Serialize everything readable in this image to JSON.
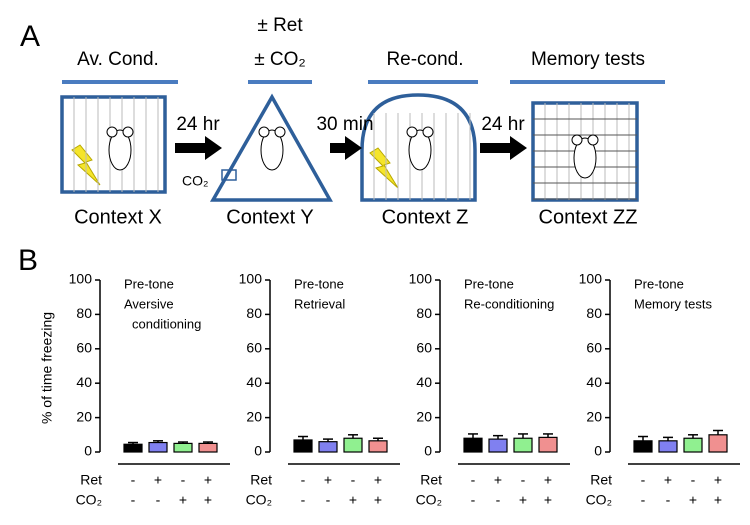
{
  "panel_a": {
    "label": "A",
    "stages": [
      {
        "header": [
          "Av. Cond."
        ],
        "context": "Context X"
      },
      {
        "header": [
          "± Ret",
          "± CO₂"
        ],
        "context": "Context Y"
      },
      {
        "header": [
          "Re-cond."
        ],
        "context": "Context Z"
      },
      {
        "header": [
          "Memory tests"
        ],
        "context": "Context ZZ"
      }
    ],
    "intervals": [
      "24 hr",
      "30 min",
      "24 hr"
    ],
    "co2_label": "CO₂"
  },
  "panel_b": {
    "label": "B"
  },
  "chart_data": [
    {
      "type": "bar",
      "title": [
        "Pre-tone",
        "Aversive",
        "conditioning"
      ],
      "ylabel": "% of time freezing",
      "values": [
        4.5,
        5.5,
        5,
        5
      ],
      "errors": [
        1,
        1,
        0.8,
        0.8
      ],
      "colors": [
        "#000000",
        "#8080f0",
        "#90f090",
        "#f09090"
      ],
      "ylim": [
        0,
        100
      ],
      "yticks": [
        0,
        20,
        40,
        60,
        80,
        100
      ],
      "rows": [
        {
          "label": "Ret",
          "marks": [
            "-",
            "+",
            "-",
            "+"
          ]
        },
        {
          "label": "CO₂",
          "marks": [
            "-",
            "-",
            "+",
            "+"
          ]
        }
      ]
    },
    {
      "type": "bar",
      "title": [
        "Pre-tone",
        "Retrieval"
      ],
      "values": [
        7,
        6,
        8,
        6.5
      ],
      "errors": [
        2,
        1.5,
        2,
        1.5
      ],
      "colors": [
        "#000000",
        "#8080f0",
        "#90f090",
        "#f09090"
      ],
      "ylim": [
        0,
        100
      ],
      "yticks": [
        0,
        20,
        40,
        60,
        80,
        100
      ],
      "rows": [
        {
          "label": "Ret",
          "marks": [
            "-",
            "+",
            "-",
            "+"
          ]
        },
        {
          "label": "CO₂",
          "marks": [
            "-",
            "-",
            "+",
            "+"
          ]
        }
      ]
    },
    {
      "type": "bar",
      "title": [
        "Pre-tone",
        "Re-conditioning"
      ],
      "values": [
        8,
        7.5,
        8,
        8.5
      ],
      "errors": [
        2.5,
        2,
        2.5,
        2
      ],
      "colors": [
        "#000000",
        "#8080f0",
        "#90f090",
        "#f09090"
      ],
      "ylim": [
        0,
        100
      ],
      "yticks": [
        0,
        20,
        40,
        60,
        80,
        100
      ],
      "rows": [
        {
          "label": "Ret",
          "marks": [
            "-",
            "+",
            "-",
            "+"
          ]
        },
        {
          "label": "CO₂",
          "marks": [
            "-",
            "-",
            "+",
            "+"
          ]
        }
      ]
    },
    {
      "type": "bar",
      "title": [
        "Pre-tone",
        "Memory tests"
      ],
      "values": [
        6.5,
        6.5,
        8,
        10
      ],
      "errors": [
        2.5,
        2,
        2,
        2.5
      ],
      "colors": [
        "#000000",
        "#8080f0",
        "#90f090",
        "#f09090"
      ],
      "ylim": [
        0,
        100
      ],
      "yticks": [
        0,
        20,
        40,
        60,
        80,
        100
      ],
      "rows": [
        {
          "label": "Ret",
          "marks": [
            "-",
            "+",
            "-",
            "+"
          ]
        },
        {
          "label": "CO₂",
          "marks": [
            "-",
            "-",
            "+",
            "+"
          ]
        }
      ]
    }
  ]
}
